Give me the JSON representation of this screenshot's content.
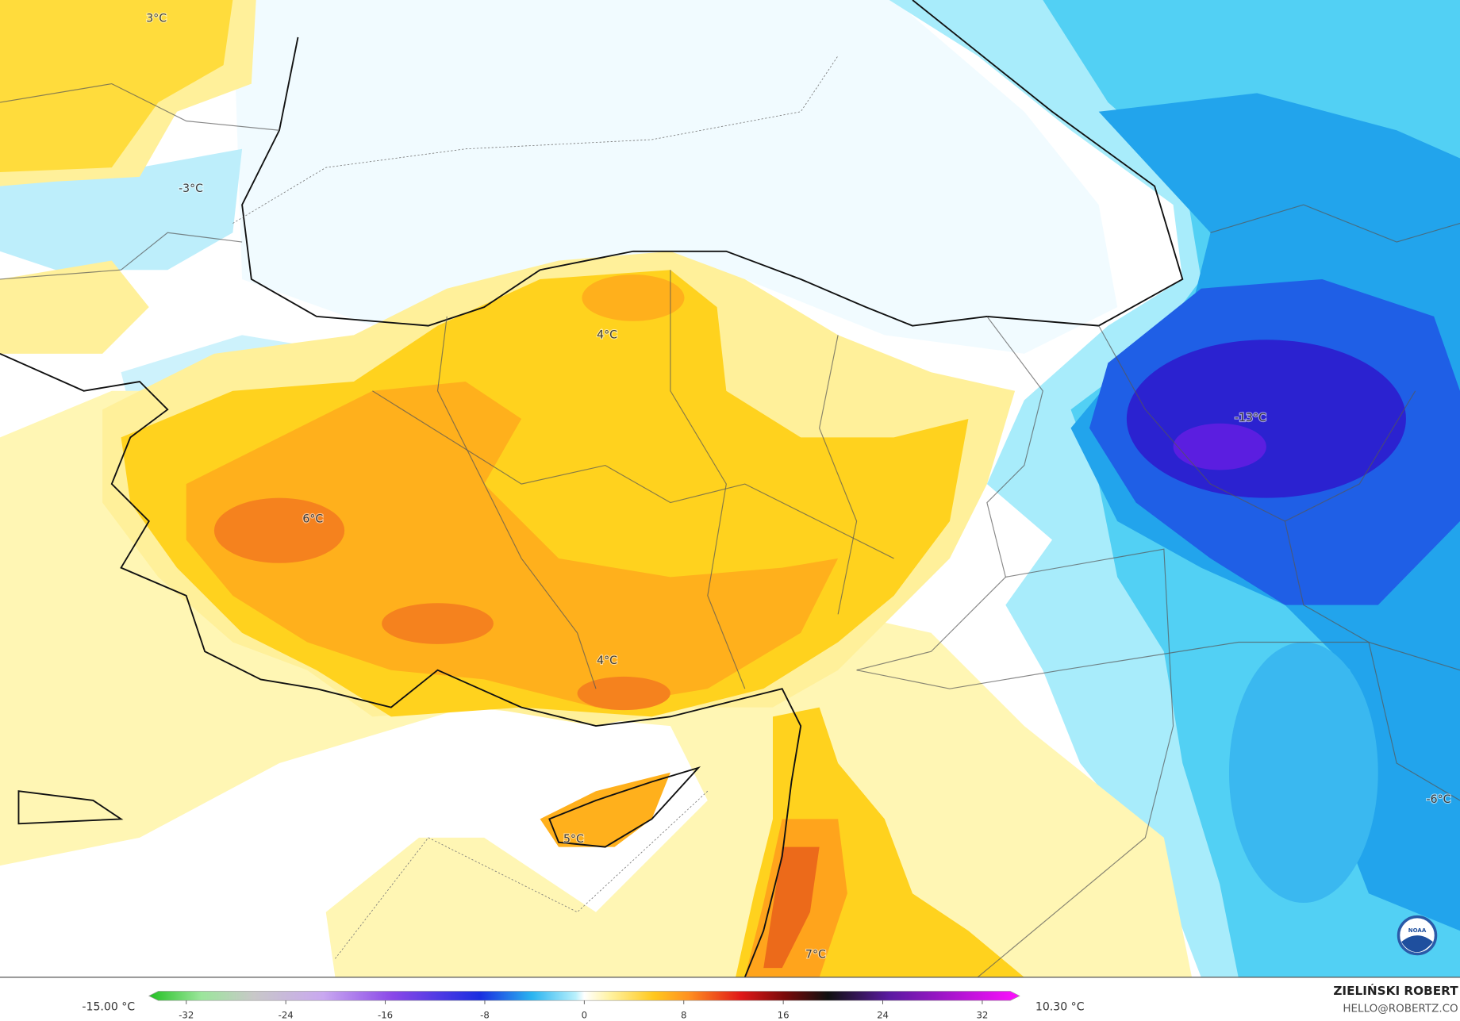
{
  "map": {
    "labels": [
      "3°C",
      "-3°C",
      "4°C",
      "6°C",
      "-13°C",
      "4°C",
      "5°C",
      "7°C",
      "-6°C"
    ]
  },
  "legend": {
    "min_label": "-15.00 °C",
    "max_label": "10.30 °C",
    "range": [
      -35,
      35
    ],
    "ticks": [
      -32,
      -24,
      -16,
      -8,
      0,
      8,
      16,
      24,
      32
    ]
  },
  "credit": {
    "author": "ZIELIŃSKI ROBERT",
    "contact": "HELLO@ROBERTZ.CO"
  }
}
